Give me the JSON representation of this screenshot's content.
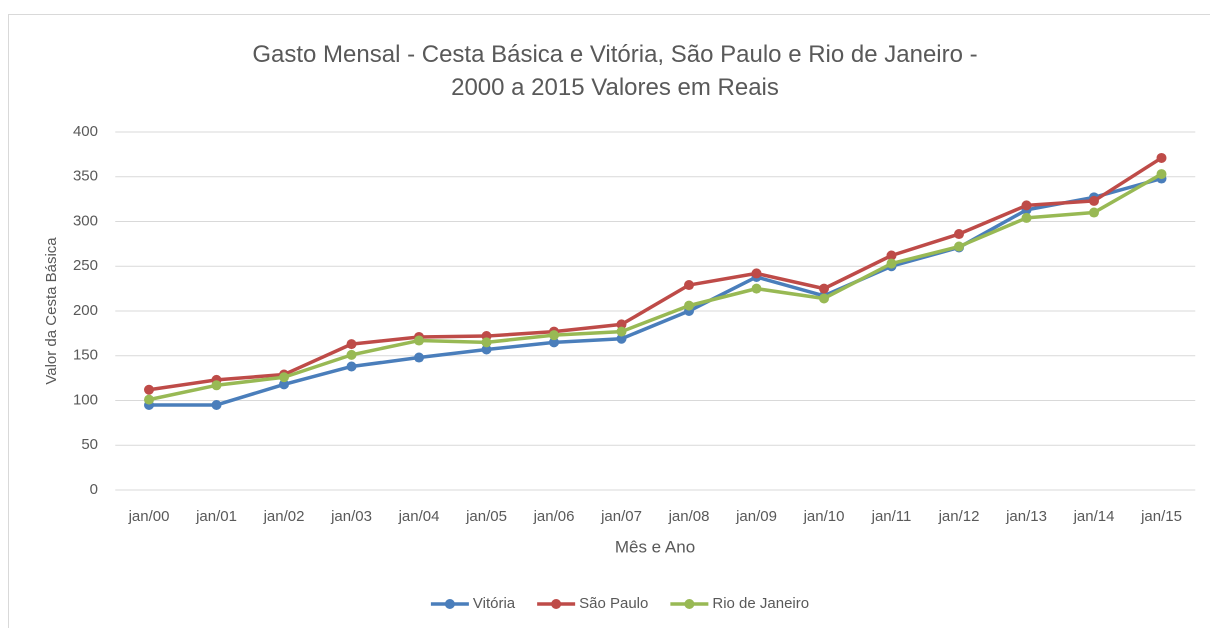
{
  "chart_data": {
    "type": "line",
    "title": "Gasto Mensal - Cesta Básica e Vitória, São Paulo e Rio de Janeiro - 2000  a 2015 Valores em Reais",
    "x_label": "Mês e Ano",
    "y_label": "Valor da Cesta Básica",
    "categories": [
      "jan/00",
      "jan/01",
      "jan/02",
      "jan/03",
      "jan/04",
      "jan/05",
      "jan/06",
      "jan/07",
      "jan/08",
      "jan/09",
      "jan/10",
      "jan/11",
      "jan/12",
      "jan/13",
      "jan/14",
      "jan/15"
    ],
    "series": [
      {
        "name": "Vitória",
        "color": "#4a7ebb",
        "values": [
          95,
          95,
          118,
          138,
          148,
          157,
          165,
          169,
          200,
          238,
          217,
          250,
          271,
          313,
          327,
          348
        ]
      },
      {
        "name": "São Paulo",
        "color": "#be4b48",
        "values": [
          112,
          123,
          129,
          163,
          171,
          172,
          177,
          185,
          229,
          242,
          225,
          262,
          286,
          318,
          323,
          371
        ]
      },
      {
        "name": "Rio de Janeiro",
        "color": "#98b954",
        "values": [
          101,
          117,
          126,
          151,
          167,
          165,
          173,
          177,
          206,
          225,
          214,
          253,
          272,
          304,
          310,
          353
        ]
      }
    ],
    "ylim": [
      0,
      400
    ],
    "yticks": [
      0,
      50,
      100,
      150,
      200,
      250,
      300,
      350,
      400
    ],
    "grid": true,
    "legend": "bottom"
  }
}
